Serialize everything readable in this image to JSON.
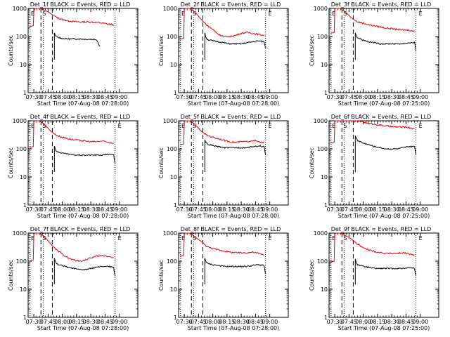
{
  "chart_data": [
    {
      "type": "line",
      "title": "Det_1f BLACK = Events, RED = LLD",
      "xlabel": "Start Time (07-Aug-08 07:28:00)",
      "ylabel": "Counts/sec",
      "y_scale": "log",
      "ylim": [
        1,
        1000
      ],
      "xlim_minutes": [
        0,
        36
      ],
      "x_ticks": [
        "07:30",
        "07:45",
        "08:00",
        "08:15",
        "08:30",
        "08:45",
        "09:00"
      ],
      "markers": [
        {
          "label": "E",
          "x": -1.5
        },
        {
          "label": "S",
          "x": 2.5
        }
      ],
      "dashed_x": [
        2.5,
        6.5
      ],
      "dotted_x": [
        0,
        3.2,
        15.5
      ],
      "red_x": [
        -1.5,
        -0.2,
        0,
        0.3,
        0.6,
        1.0,
        1.5,
        2.0,
        3.5,
        5.0,
        6.5,
        8,
        10,
        12,
        14,
        16,
        18,
        20,
        22,
        24,
        26,
        28
      ],
      "red_y": [
        230,
        240,
        750,
        1000,
        1000,
        1000,
        1000,
        1000,
        900,
        750,
        600,
        480,
        400,
        360,
        340,
        330,
        330,
        330,
        320,
        300,
        280,
        260
      ],
      "black_x": [
        7.2,
        7.5,
        8,
        10,
        12,
        14,
        16,
        18,
        20,
        22,
        23.2
      ],
      "black_y": [
        130,
        110,
        95,
        85,
        82,
        82,
        82,
        80,
        80,
        78,
        45
      ],
      "black_drop_x": 7.0,
      "red_label_series": "LLD",
      "black_label_series": "Events"
    },
    {
      "type": "line",
      "title": "Det_2f BLACK = Events, RED = LLD",
      "xlabel": "Start Time (07-Aug-08 07:28:00)",
      "ylabel": "Counts/sec",
      "y_scale": "log",
      "ylim": [
        1,
        1000
      ],
      "x_ticks": [
        "07:30",
        "07:45",
        "08:00",
        "08:15",
        "08:30",
        "08:45",
        "09:00"
      ],
      "markers": [
        {
          "label": "E",
          "x": -1.5
        },
        {
          "label": "S",
          "x": 2.5
        },
        {
          "label": "E",
          "x": 29
        }
      ],
      "red_x": [
        -1.5,
        -0.2,
        0,
        0.3,
        0.6,
        1.0,
        2,
        4,
        6,
        8,
        10,
        12,
        14,
        16,
        18,
        20,
        22,
        24,
        26,
        28
      ],
      "red_y": [
        80,
        85,
        900,
        1000,
        1000,
        1000,
        1000,
        700,
        400,
        250,
        180,
        120,
        100,
        100,
        110,
        130,
        140,
        130,
        120,
        110
      ],
      "black_x": [
        7.2,
        7.5,
        8,
        10,
        12,
        14,
        16,
        18,
        20,
        22,
        24,
        26,
        28,
        28.5
      ],
      "black_y": [
        130,
        100,
        80,
        70,
        65,
        60,
        55,
        55,
        55,
        60,
        65,
        70,
        65,
        40
      ]
    },
    {
      "type": "line",
      "title": "Det_3f BLACK = Events, RED = LLD",
      "xlabel": "Start Time (07-Aug-08 07:25:00)",
      "ylabel": "Counts/sec",
      "y_scale": "log",
      "ylim": [
        1,
        1000
      ],
      "x_ticks": [
        "07:30",
        "07:45",
        "08:00",
        "08:15",
        "08:30",
        "08:45",
        "09:00"
      ],
      "markers": [
        {
          "label": "E",
          "x": -1.5
        },
        {
          "label": "S",
          "x": 2.5
        },
        {
          "label": "E",
          "x": 29
        }
      ],
      "red_x": [
        -1.5,
        -0.2,
        0,
        0.3,
        0.6,
        1.0,
        2,
        4,
        6,
        8,
        10,
        12,
        14,
        16,
        18,
        20,
        22,
        24,
        26,
        28
      ],
      "red_y": [
        130,
        140,
        900,
        1000,
        1000,
        1000,
        1000,
        700,
        450,
        330,
        300,
        260,
        240,
        220,
        200,
        190,
        180,
        170,
        170,
        150
      ],
      "black_x": [
        7.2,
        7.5,
        8,
        10,
        12,
        14,
        16,
        18,
        20,
        22,
        24,
        26,
        28,
        28.5
      ],
      "black_y": [
        140,
        110,
        90,
        75,
        65,
        60,
        55,
        55,
        55,
        55,
        55,
        60,
        60,
        30
      ]
    },
    {
      "type": "line",
      "title": "Det_4f BLACK = Events, RED = LLD",
      "xlabel": "Start Time (07-Aug-08 07:28:00)",
      "ylabel": "Counts/sec",
      "y_scale": "log",
      "ylim": [
        1,
        1000
      ],
      "x_ticks": [
        "07:30",
        "07:45",
        "08:00",
        "08:15",
        "08:30",
        "08:45",
        "09:00"
      ],
      "markers": [
        {
          "label": "E",
          "x": -1.5
        },
        {
          "label": "S",
          "x": 2.5
        },
        {
          "label": "E",
          "x": 29
        }
      ],
      "red_x": [
        -1.5,
        -0.2,
        0,
        0.3,
        0.6,
        1.0,
        2,
        4,
        6,
        8,
        10,
        12,
        14,
        16,
        18,
        20,
        22,
        24,
        26,
        28
      ],
      "red_y": [
        110,
        120,
        900,
        1000,
        1000,
        1000,
        1000,
        700,
        420,
        300,
        260,
        230,
        210,
        200,
        190,
        180,
        180,
        190,
        170,
        160
      ],
      "black_x": [
        7.2,
        7.5,
        8,
        10,
        12,
        14,
        16,
        18,
        20,
        22,
        24,
        26,
        28,
        28.5
      ],
      "black_y": [
        130,
        100,
        80,
        70,
        65,
        60,
        60,
        60,
        60,
        60,
        60,
        65,
        60,
        30
      ]
    },
    {
      "type": "line",
      "title": "Det_5f BLACK = Events, RED = LLD",
      "xlabel": "Start Time (07-Aug-08 07:28:00)",
      "ylabel": "Counts/sec",
      "y_scale": "log",
      "ylim": [
        1,
        1000
      ],
      "x_ticks": [
        "07:30",
        "07:45",
        "08:00",
        "08:15",
        "08:30",
        "08:45",
        "09:00"
      ],
      "markers": [
        {
          "label": "E",
          "x": -1.5
        },
        {
          "label": "S",
          "x": 2.5
        },
        {
          "label": "E",
          "x": 29
        }
      ],
      "red_x": [
        -1.5,
        -0.2,
        0,
        0.3,
        0.6,
        1.0,
        2,
        4,
        6,
        8,
        10,
        12,
        14,
        16,
        18,
        20,
        22,
        24,
        26,
        28
      ],
      "red_y": [
        140,
        150,
        900,
        1000,
        1000,
        1000,
        1000,
        700,
        420,
        300,
        260,
        230,
        200,
        180,
        170,
        180,
        180,
        200,
        180,
        160
      ],
      "black_x": [
        7.2,
        7.5,
        8,
        10,
        12,
        14,
        16,
        18,
        20,
        22,
        24,
        26,
        28,
        28.5
      ],
      "black_y": [
        220,
        180,
        150,
        130,
        120,
        110,
        110,
        110,
        110,
        110,
        120,
        125,
        120,
        60
      ]
    },
    {
      "type": "line",
      "title": "Det_6f BLACK = Events, RED = LLD",
      "xlabel": "Start Time (07-Aug-08 07:25:00)",
      "ylabel": "Counts/sec",
      "y_scale": "log",
      "ylim": [
        1,
        1000
      ],
      "x_ticks": [
        "07:30",
        "07:45",
        "08:00",
        "08:15",
        "08:30",
        "08:45",
        "09:00"
      ],
      "markers": [
        {
          "label": "E",
          "x": -1.5
        },
        {
          "label": "S",
          "x": 2.5
        },
        {
          "label": "E",
          "x": 29
        }
      ],
      "red_x": [
        -1.5,
        -0.2,
        0,
        0.3,
        0.6,
        1.0,
        2,
        4,
        6,
        8,
        10,
        12,
        14,
        16,
        18,
        20,
        22,
        24,
        26,
        28
      ],
      "red_y": [
        160,
        170,
        900,
        1000,
        1000,
        1000,
        1000,
        1000,
        1000,
        1000,
        900,
        800,
        750,
        700,
        650,
        620,
        600,
        600,
        580,
        500
      ],
      "black_x": [
        7.2,
        7.5,
        8,
        10,
        12,
        14,
        16,
        18,
        20,
        22,
        24,
        26,
        28,
        28.5
      ],
      "black_y": [
        300,
        250,
        200,
        160,
        140,
        120,
        110,
        100,
        100,
        100,
        110,
        120,
        120,
        60
      ]
    },
    {
      "type": "line",
      "title": "Det_7f BLACK = Events, RED = LLD",
      "xlabel": "Start Time (07-Aug-08 07:28:00)",
      "ylabel": "Counts/sec",
      "y_scale": "log",
      "ylim": [
        1,
        1000
      ],
      "x_ticks": [
        "07:30",
        "07:45",
        "08:00",
        "08:15",
        "08:30",
        "08:45",
        "09:00"
      ],
      "markers": [
        {
          "label": "E",
          "x": -1.5
        },
        {
          "label": "S",
          "x": 2.5
        },
        {
          "label": "E",
          "x": 29
        }
      ],
      "red_x": [
        -1.5,
        -0.2,
        0,
        0.3,
        0.6,
        1.0,
        2,
        4,
        6,
        8,
        10,
        12,
        14,
        16,
        18,
        20,
        22,
        24,
        26,
        28
      ],
      "red_y": [
        100,
        110,
        900,
        1000,
        1000,
        1000,
        1000,
        700,
        400,
        250,
        180,
        130,
        110,
        100,
        110,
        130,
        150,
        160,
        150,
        130
      ],
      "black_x": [
        7.2,
        7.5,
        8,
        10,
        12,
        14,
        16,
        18,
        20,
        22,
        24,
        26,
        28,
        28.5
      ],
      "black_y": [
        130,
        100,
        80,
        70,
        60,
        55,
        50,
        50,
        55,
        60,
        65,
        65,
        60,
        30
      ]
    },
    {
      "type": "line",
      "title": "Det_8f BLACK = Events, RED = LLD",
      "xlabel": "Start Time (07-Aug-08 07:28:00)",
      "ylabel": "Counts/sec",
      "y_scale": "log",
      "ylim": [
        1,
        1000
      ],
      "x_ticks": [
        "07:30",
        "07:45",
        "08:00",
        "08:15",
        "08:30",
        "08:45",
        "09:00"
      ],
      "markers": [
        {
          "label": "E",
          "x": -1.5
        },
        {
          "label": "S",
          "x": 2.5
        },
        {
          "label": "E",
          "x": 29
        }
      ],
      "red_x": [
        -1.5,
        -0.2,
        0,
        0.3,
        0.6,
        1.0,
        2,
        4,
        6,
        8,
        10,
        12,
        14,
        16,
        18,
        20,
        22,
        24,
        26,
        28
      ],
      "red_y": [
        150,
        160,
        900,
        1000,
        1000,
        1000,
        1000,
        700,
        500,
        330,
        280,
        250,
        230,
        210,
        200,
        200,
        200,
        210,
        190,
        170
      ],
      "black_x": [
        7.2,
        7.5,
        8,
        10,
        12,
        14,
        16,
        18,
        20,
        22,
        24,
        26,
        28,
        28.5
      ],
      "black_y": [
        130,
        100,
        85,
        75,
        70,
        65,
        65,
        65,
        65,
        65,
        70,
        75,
        70,
        35
      ]
    },
    {
      "type": "line",
      "title": "Det_9f BLACK = Events, RED = LLD",
      "xlabel": "Start Time (07-Aug-08 07:25:00)",
      "ylabel": "Counts/sec",
      "y_scale": "log",
      "ylim": [
        1,
        1000
      ],
      "x_ticks": [
        "07:30",
        "07:45",
        "08:00",
        "08:15",
        "08:30",
        "08:45",
        "09:00"
      ],
      "markers": [
        {
          "label": "E",
          "x": -1.5
        },
        {
          "label": "S",
          "x": 2.5
        },
        {
          "label": "E",
          "x": 29
        }
      ],
      "red_x": [
        -1.5,
        -0.2,
        0,
        0.3,
        0.6,
        1.0,
        2,
        4,
        6,
        8,
        10,
        12,
        14,
        16,
        18,
        20,
        22,
        24,
        26,
        28
      ],
      "red_y": [
        90,
        100,
        900,
        1000,
        1000,
        1000,
        1000,
        800,
        600,
        400,
        300,
        250,
        220,
        200,
        190,
        190,
        190,
        200,
        180,
        160
      ],
      "black_x": [
        7.2,
        7.5,
        8,
        10,
        12,
        14,
        16,
        18,
        20,
        22,
        24,
        26,
        28,
        28.5
      ],
      "black_y": [
        120,
        95,
        75,
        65,
        60,
        55,
        55,
        55,
        55,
        55,
        55,
        60,
        55,
        30
      ]
    }
  ],
  "colors": {
    "red_series": "#e00000",
    "black_series": "#000000",
    "axis": "#000000",
    "background": "#ffffff"
  },
  "y_tick_labels": [
    "1",
    "10",
    "100",
    "1000"
  ]
}
